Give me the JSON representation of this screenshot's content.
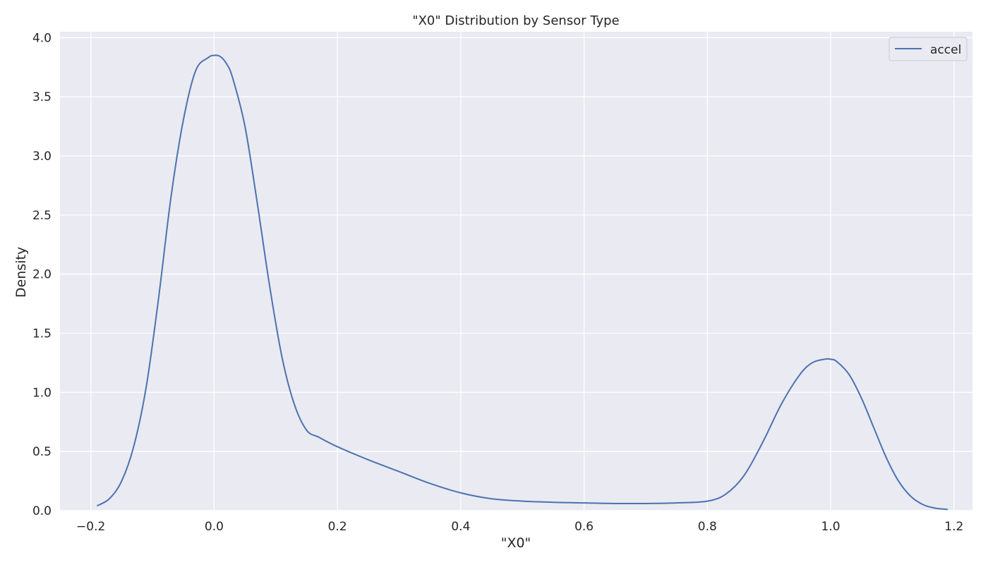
{
  "chart_data": {
    "type": "line",
    "title": "\"X0\" Distribution by Sensor Type",
    "xlabel": "\"X0\"",
    "ylabel": "Density",
    "xlim": [
      -0.25,
      1.23
    ],
    "ylim": [
      0.0,
      4.05
    ],
    "xticks": [
      -0.2,
      0.0,
      0.2,
      0.4,
      0.6,
      0.8,
      1.0,
      1.2
    ],
    "xtick_labels": [
      "−0.2",
      "0.0",
      "0.2",
      "0.4",
      "0.6",
      "0.8",
      "1.0",
      "1.2"
    ],
    "yticks": [
      0.0,
      0.5,
      1.0,
      1.5,
      2.0,
      2.5,
      3.0,
      3.5,
      4.0
    ],
    "ytick_labels": [
      "0.0",
      "0.5",
      "1.0",
      "1.5",
      "2.0",
      "2.5",
      "3.0",
      "3.5",
      "4.0"
    ],
    "grid": true,
    "legend_position": "top-right",
    "colors": {
      "background": "#eaeaf2",
      "grid": "#ffffff",
      "series": "#4c72b0"
    },
    "series": [
      {
        "name": "accel",
        "x": [
          -0.19,
          -0.17,
          -0.15,
          -0.13,
          -0.11,
          -0.09,
          -0.07,
          -0.05,
          -0.03,
          -0.01,
          0.0,
          0.01,
          0.02,
          0.03,
          0.05,
          0.07,
          0.09,
          0.11,
          0.13,
          0.15,
          0.17,
          0.2,
          0.25,
          0.3,
          0.35,
          0.4,
          0.45,
          0.5,
          0.55,
          0.6,
          0.65,
          0.7,
          0.75,
          0.8,
          0.83,
          0.86,
          0.89,
          0.92,
          0.95,
          0.97,
          0.99,
          1.0,
          1.01,
          1.03,
          1.05,
          1.07,
          1.09,
          1.11,
          1.13,
          1.15,
          1.17,
          1.19
        ],
        "y": [
          0.04,
          0.1,
          0.25,
          0.55,
          1.05,
          1.8,
          2.65,
          3.3,
          3.72,
          3.83,
          3.85,
          3.84,
          3.78,
          3.66,
          3.25,
          2.6,
          1.9,
          1.3,
          0.9,
          0.68,
          0.62,
          0.54,
          0.43,
          0.33,
          0.23,
          0.15,
          0.1,
          0.08,
          0.07,
          0.065,
          0.06,
          0.06,
          0.065,
          0.08,
          0.14,
          0.3,
          0.58,
          0.9,
          1.15,
          1.25,
          1.28,
          1.28,
          1.26,
          1.15,
          0.95,
          0.7,
          0.45,
          0.25,
          0.12,
          0.05,
          0.02,
          0.01
        ]
      }
    ]
  }
}
